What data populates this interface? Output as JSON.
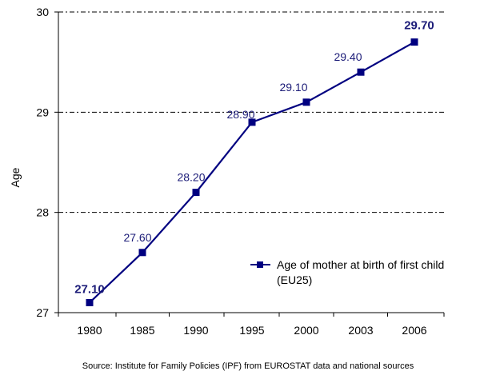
{
  "chart_data": {
    "type": "line",
    "categories": [
      "1980",
      "1985",
      "1990",
      "1995",
      "2000",
      "2003",
      "2006"
    ],
    "series": [
      {
        "name": "Age of mother at birth of first child (EU25)",
        "values": [
          27.1,
          27.6,
          28.2,
          28.9,
          29.1,
          29.4,
          29.7
        ],
        "value_labels": [
          "27.10",
          "27.60",
          "28.20",
          "28.90",
          "29.10",
          "29.40",
          "29.70"
        ],
        "color": "#000080"
      }
    ],
    "ylabel": "Age",
    "xlabel": "",
    "ylim": [
      27,
      30
    ],
    "yticks": [
      "27",
      "28",
      "29",
      "30"
    ],
    "grid": true,
    "legend": {
      "position": "right",
      "line1": "Age of mother at birth of first child",
      "line2": "(EU25)"
    },
    "source": "Source: Institute for Family Policies (IPF) from EUROSTAT data and national sources"
  }
}
